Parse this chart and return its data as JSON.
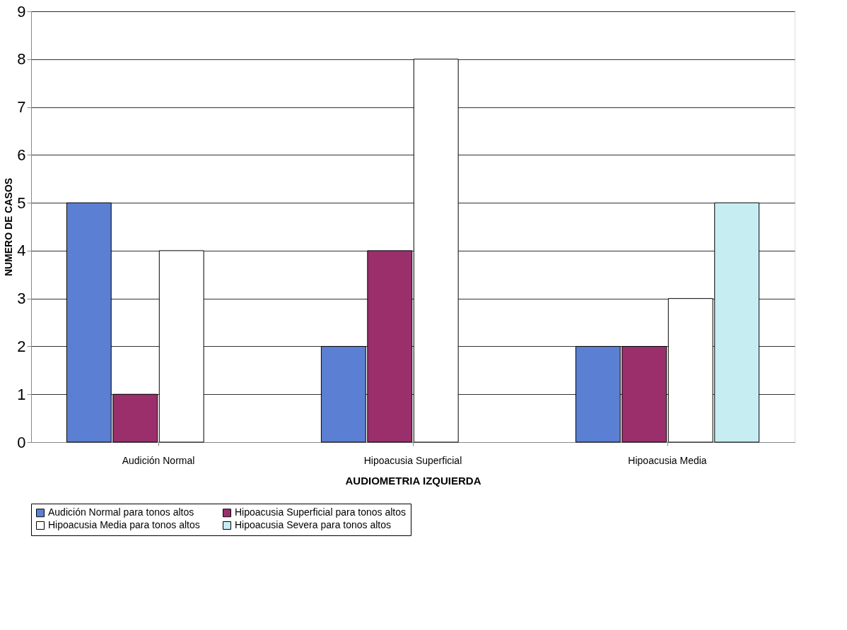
{
  "chart_data": {
    "type": "bar",
    "xlabel": "AUDIOMETRIA IZQUIERDA",
    "ylabel": "NUMERO DE CASOS",
    "categories": [
      "Audición Normal",
      "Hipoacusia Superficial",
      "Hipoacusia Media"
    ],
    "series": [
      {
        "name": "Audición Normal para tonos altos",
        "color": "#5b7fd2",
        "values": [
          5,
          2,
          2
        ]
      },
      {
        "name": "Hipoacusia Superficial para tonos altos",
        "color": "#9a2f6c",
        "values": [
          1,
          4,
          2
        ]
      },
      {
        "name": "Hipoacusia Media para tonos altos",
        "color": "#ffffff",
        "values": [
          4,
          8,
          3
        ]
      },
      {
        "name": "Hipoacusia Severa para tonos altos",
        "color": "#c6eef2",
        "values": [
          null,
          null,
          5
        ]
      }
    ],
    "ylim": [
      0,
      9
    ],
    "yticks": [
      0,
      1,
      2,
      3,
      4,
      5,
      6,
      7,
      8,
      9
    ],
    "grid": "y",
    "legend": "bottom"
  }
}
